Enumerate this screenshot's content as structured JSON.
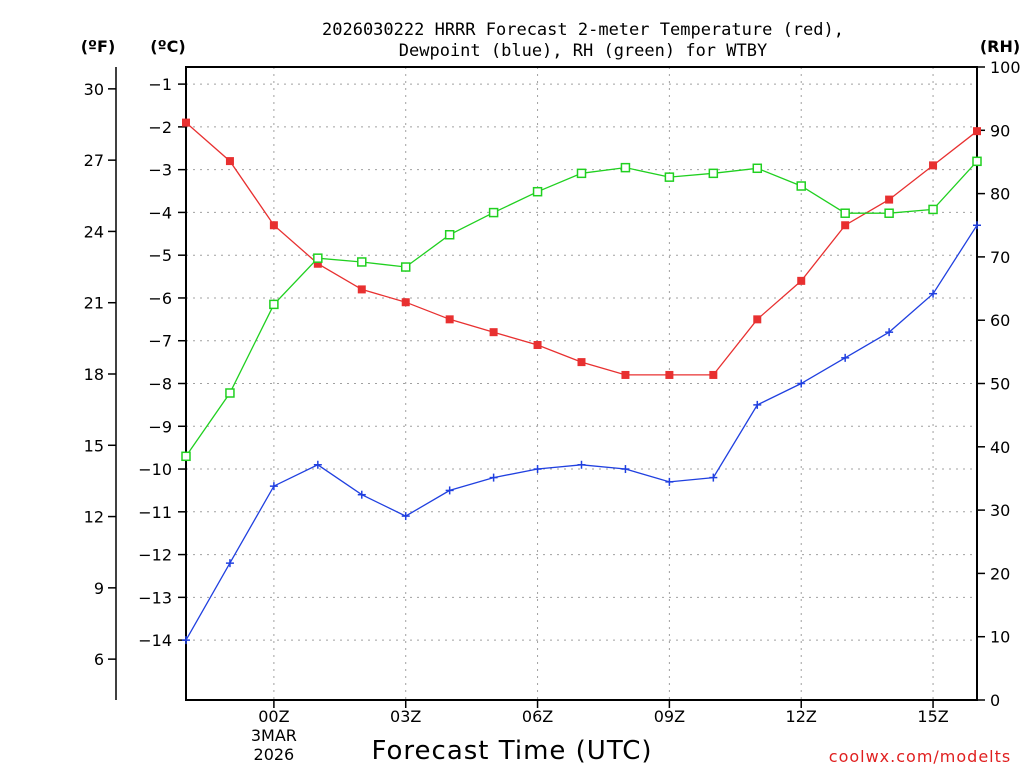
{
  "chart_data": {
    "type": "line",
    "title_line1": "2026030222 HRRR Forecast 2-meter Temperature (red),",
    "title_line2": "Dewpoint (blue), RH (green) for WTBY",
    "xlabel": "Forecast Time (UTC)",
    "credit": "coolwx.com/modelts",
    "units": {
      "fahrenheit": "(ºF)",
      "celsius": "(ºC)",
      "rh": "(RH)"
    },
    "x_hours": [
      -2,
      -1,
      0,
      1,
      2,
      3,
      4,
      5,
      6,
      7,
      8,
      9,
      10,
      11,
      12,
      13,
      14,
      15,
      16
    ],
    "x_range": [
      -2,
      16
    ],
    "x_ticks": [
      {
        "hour": 0,
        "label": "00Z"
      },
      {
        "hour": 3,
        "label": "03Z"
      },
      {
        "hour": 6,
        "label": "06Z"
      },
      {
        "hour": 9,
        "label": "09Z"
      },
      {
        "hour": 12,
        "label": "12Z"
      },
      {
        "hour": 15,
        "label": "15Z"
      }
    ],
    "date_labels": [
      "3MAR",
      "2026"
    ],
    "celsius_range": [
      -15.4,
      -0.6
    ],
    "celsius_ticks": [
      "-1",
      "-2",
      "-3",
      "-4",
      "-5",
      "-6",
      "-7",
      "-8",
      "-9",
      "-10",
      "-11",
      "-12",
      "-13",
      "-14"
    ],
    "fahrenheit_ticks": [
      "30",
      "27",
      "24",
      "21",
      "18",
      "15",
      "12",
      "9",
      "6"
    ],
    "rh_range": [
      0,
      100
    ],
    "rh_ticks": [
      "100",
      "90",
      "80",
      "70",
      "60",
      "50",
      "40",
      "30",
      "20",
      "10",
      "0"
    ],
    "series": [
      {
        "name": "2-meter Temperature",
        "color": "#e83030",
        "marker": "filled-square",
        "axis": "celsius",
        "values": [
          -1.9,
          -2.8,
          -4.3,
          -5.2,
          -5.8,
          -6.1,
          -6.5,
          -6.8,
          -7.1,
          -7.5,
          -7.8,
          -7.8,
          -7.8,
          -6.5,
          -5.6,
          -4.3,
          -3.7,
          -2.9,
          -2.1
        ]
      },
      {
        "name": "Dewpoint",
        "color": "#2040e0",
        "marker": "plus",
        "axis": "celsius",
        "values": [
          -14.0,
          -12.2,
          -10.4,
          -9.9,
          -10.6,
          -11.1,
          -10.5,
          -10.2,
          -10.0,
          -9.9,
          -10.0,
          -10.3,
          -10.2,
          -8.5,
          -8.0,
          -7.4,
          -6.8,
          -5.9,
          -4.3
        ]
      },
      {
        "name": "RH",
        "color": "#20d020",
        "marker": "open-square",
        "axis": "rh",
        "values": [
          38.5,
          48.5,
          62.5,
          69.8,
          69.2,
          68.4,
          73.5,
          77.0,
          80.3,
          83.2,
          84.1,
          82.6,
          83.2,
          84.0,
          81.2,
          76.9,
          76.9,
          77.5,
          85.1
        ]
      }
    ]
  }
}
